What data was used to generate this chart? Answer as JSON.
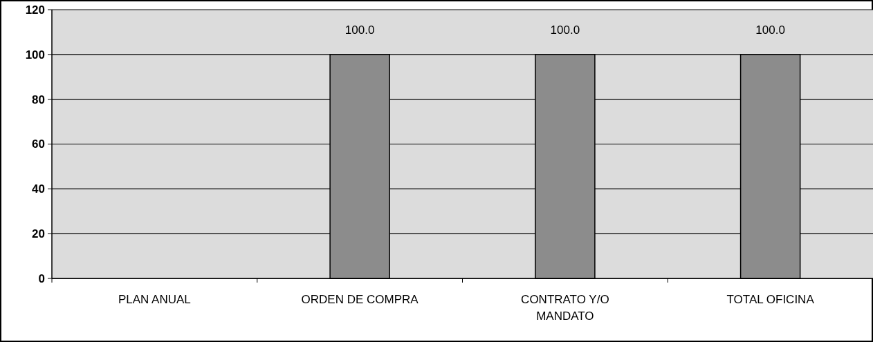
{
  "chart_data": {
    "type": "bar",
    "categories": [
      "PLAN ANUAL",
      "ORDEN DE COMPRA",
      "CONTRATO Y/O MANDATO",
      "TOTAL OFICINA"
    ],
    "values": [
      null,
      100,
      100,
      100
    ],
    "color": "#8c8c8c",
    "value_labels": [
      null,
      "100.0",
      "100.0",
      "100.0"
    ],
    "ylim": [
      0,
      120
    ],
    "yticks": [
      0,
      20,
      40,
      60,
      80,
      100,
      120
    ],
    "grid": "y"
  }
}
